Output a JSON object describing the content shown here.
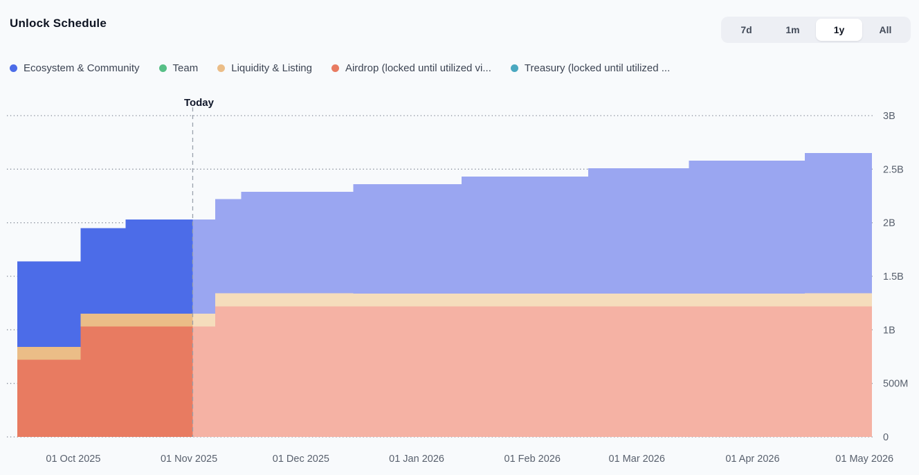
{
  "header": {
    "title": "Unlock Schedule"
  },
  "range_switcher": {
    "options": [
      {
        "label": "7d",
        "active": false
      },
      {
        "label": "1m",
        "active": false
      },
      {
        "label": "1y",
        "active": true
      },
      {
        "label": "All",
        "active": false
      }
    ]
  },
  "legend": {
    "items": [
      {
        "label": "Ecosystem & Community",
        "color": "#4c6ce8"
      },
      {
        "label": "Team",
        "color": "#57bf86"
      },
      {
        "label": "Liquidity & Listing",
        "color": "#ebbd87"
      },
      {
        "label": "Airdrop (locked until utilized vi...",
        "color": "#e87b61"
      },
      {
        "label": "Treasury (locked until utilized ...",
        "color": "#4aa8c0"
      }
    ]
  },
  "chart_data": {
    "type": "area",
    "subtype": "stacked-step-area",
    "title": "Unlock Schedule",
    "xlabel": "",
    "ylabel": "",
    "grid": "dotted-horizontal",
    "legend_position": "top",
    "x_domain": [
      "2025-09-16",
      "2026-05-03"
    ],
    "today": {
      "date": "2025-11-02",
      "label": "Today"
    },
    "x_ticks": [
      {
        "date": "2025-10-01",
        "label": "01 Oct 2025"
      },
      {
        "date": "2025-11-01",
        "label": "01 Nov 2025"
      },
      {
        "date": "2025-12-01",
        "label": "01 Dec 2025"
      },
      {
        "date": "2026-01-01",
        "label": "01 Jan 2026"
      },
      {
        "date": "2026-02-01",
        "label": "01 Feb 2026"
      },
      {
        "date": "2026-03-01",
        "label": "01 Mar 2026"
      },
      {
        "date": "2026-04-01",
        "label": "01 Apr 2026"
      },
      {
        "date": "2026-05-01",
        "label": "01 May 2026"
      }
    ],
    "ylim": [
      0,
      3000000000
    ],
    "y_ticks": [
      {
        "value": 0,
        "label": "0"
      },
      {
        "value": 500000000,
        "label": "500M"
      },
      {
        "value": 1000000000,
        "label": "1B"
      },
      {
        "value": 1500000000,
        "label": "1.5B"
      },
      {
        "value": 2000000000,
        "label": "2B"
      },
      {
        "value": 2500000000,
        "label": "2.5B"
      },
      {
        "value": 3000000000,
        "label": "3B"
      }
    ],
    "series": [
      {
        "name": "Airdrop (locked until utilized vi...",
        "color_past": "#e87b61",
        "color_future": "#f5b2a4",
        "steps": [
          [
            "2025-09-16",
            720000000
          ],
          [
            "2025-10-03",
            1030000000
          ],
          [
            "2025-11-08",
            1220000000
          ]
        ]
      },
      {
        "name": "Liquidity & Listing",
        "color_past": "#ebbd87",
        "color_future": "#f5ddbc",
        "steps": [
          [
            "2025-09-16",
            120000000
          ]
        ]
      },
      {
        "name": "Ecosystem & Community",
        "color_past": "#4c6ce8",
        "color_future": "#9aa6f1",
        "steps": [
          [
            "2025-09-16",
            800000000
          ],
          [
            "2025-10-15",
            880000000
          ],
          [
            "2025-11-15",
            950000000
          ],
          [
            "2025-12-15",
            1020000000
          ],
          [
            "2026-01-13",
            1090000000
          ],
          [
            "2026-02-16",
            1170000000
          ],
          [
            "2026-03-15",
            1240000000
          ],
          [
            "2026-04-15",
            1310000000
          ]
        ]
      },
      {
        "name": "Team",
        "color_past": "#57bf86",
        "color_future": "#a9dfc2",
        "steps": []
      },
      {
        "name": "Treasury (locked until utilized ...",
        "color_past": "#4aa8c0",
        "color_future": "#a3d3df",
        "steps": []
      }
    ],
    "colors": {
      "background": "#f8fafc",
      "grid": "#828996",
      "axis_text": "#58606d",
      "today_line": "#9aa1ac"
    }
  }
}
